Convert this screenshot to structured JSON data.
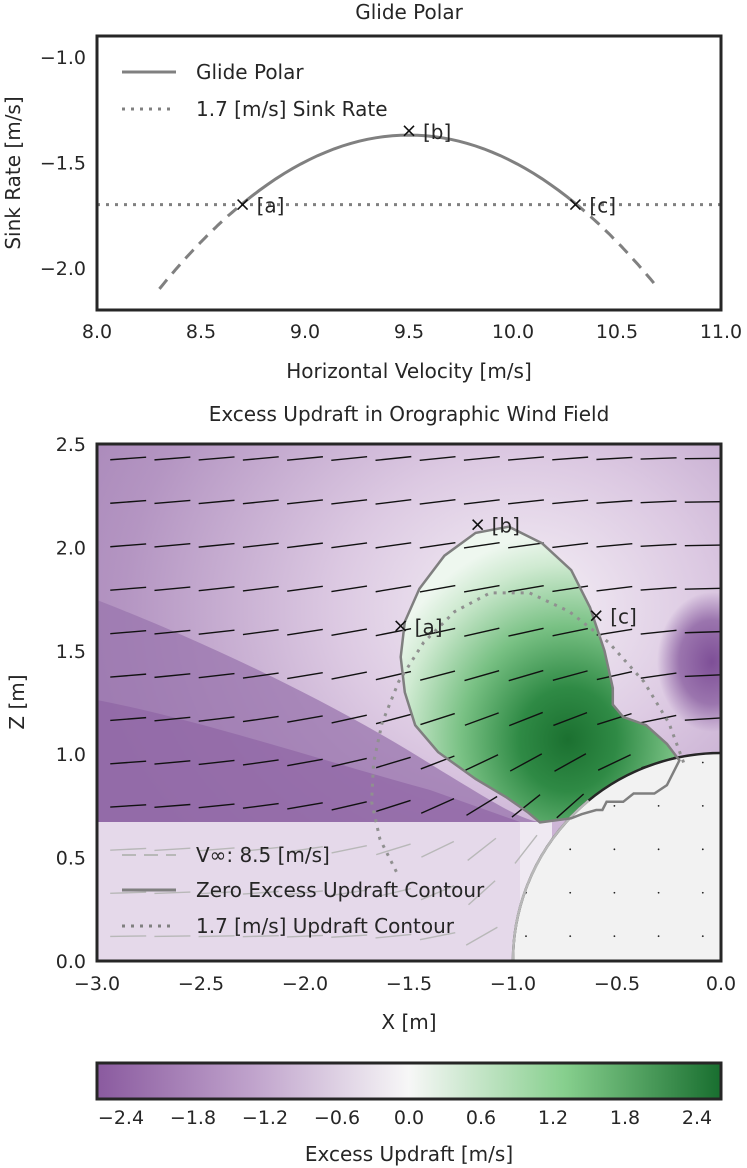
{
  "chart_data": [
    {
      "type": "line",
      "title": "Glide Polar",
      "xlabel": "Horizontal Velocity [m/s]",
      "ylabel": "Sink Rate [m/s]",
      "xlim": [
        8.0,
        11.0
      ],
      "ylim": [
        -2.2,
        -0.9
      ],
      "xticks": [
        "8.0",
        "8.5",
        "9.0",
        "9.5",
        "10.0",
        "10.5",
        "11.0"
      ],
      "yticks": [
        "−1.0",
        "−1.5",
        "−2.0"
      ],
      "grid": false,
      "legend_position": "top-left",
      "series": [
        {
          "name": "Glide Polar",
          "style": "solid (dashed outside 8.7–10.3)",
          "color": "#808080",
          "x": [
            8.3,
            8.5,
            8.7,
            8.9,
            9.1,
            9.3,
            9.5,
            9.7,
            9.9,
            10.1,
            10.3,
            10.5,
            10.7
          ],
          "y": [
            -2.1,
            -1.883,
            -1.7,
            -1.557,
            -1.455,
            -1.394,
            -1.37,
            -1.394,
            -1.455,
            -1.557,
            -1.7,
            -1.883,
            -2.1
          ]
        },
        {
          "name": "1.7 [m/s] Sink Rate",
          "style": "dotted",
          "color": "#808080",
          "x": [
            8.0,
            11.0
          ],
          "y": [
            -1.7,
            -1.7
          ]
        }
      ],
      "annotations": [
        {
          "label": "[a]",
          "x": 8.7,
          "y": -1.7
        },
        {
          "label": "[b]",
          "x": 9.5,
          "y": -1.35
        },
        {
          "label": "[c]",
          "x": 10.3,
          "y": -1.7
        }
      ]
    },
    {
      "type": "heatmap",
      "title": "Excess Updraft in Orographic Wind Field",
      "xlabel": "X [m]",
      "ylabel": "Z [m]",
      "xlim": [
        -3.0,
        0.0
      ],
      "ylim": [
        0.0,
        2.5
      ],
      "xticks": [
        "−3.0",
        "−2.5",
        "−2.0",
        "−1.5",
        "−1.0",
        "−0.5",
        "0.0"
      ],
      "yticks": [
        "0.0",
        "0.5",
        "1.0",
        "1.5",
        "2.0",
        "2.5"
      ],
      "colormap": "purple-white-green",
      "colors": {
        "low": "#7b3294",
        "mid": "#f7f7f7",
        "high": "#1b7837"
      },
      "cylinder": {
        "center_x": 0.0,
        "center_z": 0.0,
        "radius": 1.0
      },
      "freestream_speed": 8.5,
      "legend_position": "bottom-left",
      "legend": [
        {
          "name": "V∞: 8.5 [m/s]",
          "style": "dashed"
        },
        {
          "name": "Zero Excess Updraft Contour",
          "style": "solid"
        },
        {
          "name": "1.7 [m/s] Updraft Contour",
          "style": "dotted"
        }
      ],
      "zero_contour": {
        "x": [
          -0.87,
          -0.93,
          -1.03,
          -1.18,
          -1.36,
          -1.47,
          -1.52,
          -1.54,
          -1.52,
          -1.45,
          -1.33,
          -1.18,
          -1.02,
          -0.86,
          -0.72,
          -0.63,
          -0.56,
          -0.52,
          -0.52,
          -0.47,
          -0.36,
          -0.26,
          -0.2,
          -0.26,
          -0.32,
          -0.42,
          -0.47,
          -0.55,
          -0.57,
          -0.6,
          -0.67,
          -0.72
        ],
        "z": [
          0.67,
          0.72,
          0.79,
          0.88,
          1.01,
          1.14,
          1.3,
          1.47,
          1.64,
          1.8,
          1.96,
          2.07,
          2.1,
          2.02,
          1.89,
          1.71,
          1.5,
          1.32,
          1.24,
          1.18,
          1.14,
          1.05,
          0.97,
          0.85,
          0.81,
          0.81,
          0.77,
          0.77,
          0.73,
          0.73,
          0.71,
          0.69
        ]
      },
      "updraft_contour_1_7": {
        "x": [
          -0.18,
          -0.25,
          -0.37,
          -0.54,
          -0.73,
          -0.92,
          -1.11,
          -1.28,
          -1.43,
          -1.55,
          -1.63,
          -1.67,
          -1.68,
          -1.64,
          -1.55
        ],
        "z": [
          0.96,
          1.15,
          1.35,
          1.54,
          1.69,
          1.78,
          1.78,
          1.69,
          1.54,
          1.35,
          1.15,
          0.96,
          0.77,
          0.59,
          0.41
        ]
      },
      "annotations": [
        {
          "label": "[a]",
          "x": -1.54,
          "y": 1.62
        },
        {
          "label": "[b]",
          "x": -1.17,
          "y": 2.11
        },
        {
          "label": "[c]",
          "x": -0.6,
          "y": 1.67
        }
      ]
    },
    {
      "type": "colorbar",
      "label": "Excess Updraft [m/s]",
      "range": [
        -2.6,
        2.6
      ],
      "ticks": [
        "−2.4",
        "−1.8",
        "−1.2",
        "−0.6",
        "0.0",
        "0.6",
        "1.2",
        "1.8",
        "2.4"
      ]
    }
  ]
}
